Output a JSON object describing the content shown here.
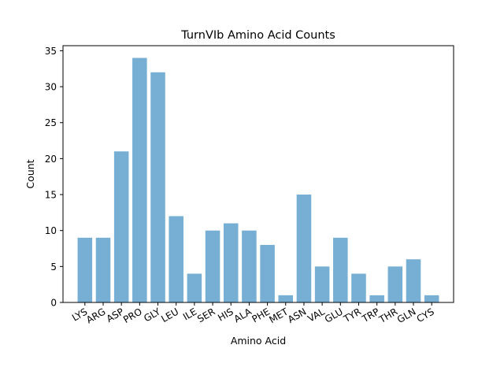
{
  "chart_data": {
    "type": "bar",
    "title": "TurnVIb Amino Acid Counts",
    "xlabel": "Amino Acid",
    "ylabel": "Count",
    "categories": [
      "LYS",
      "ARG",
      "ASP",
      "PRO",
      "GLY",
      "LEU",
      "ILE",
      "SER",
      "HIS",
      "ALA",
      "PHE",
      "MET",
      "ASN",
      "VAL",
      "GLU",
      "TYR",
      "TRP",
      "THR",
      "GLN",
      "CYS"
    ],
    "values": [
      9,
      9,
      21,
      34,
      32,
      12,
      4,
      10,
      11,
      10,
      8,
      1,
      15,
      5,
      9,
      4,
      1,
      5,
      6,
      1
    ],
    "ylim": [
      0,
      35.7
    ],
    "yticks": [
      0,
      5,
      10,
      15,
      20,
      25,
      30,
      35
    ],
    "grid": false,
    "bar_color": "#77afd4"
  }
}
